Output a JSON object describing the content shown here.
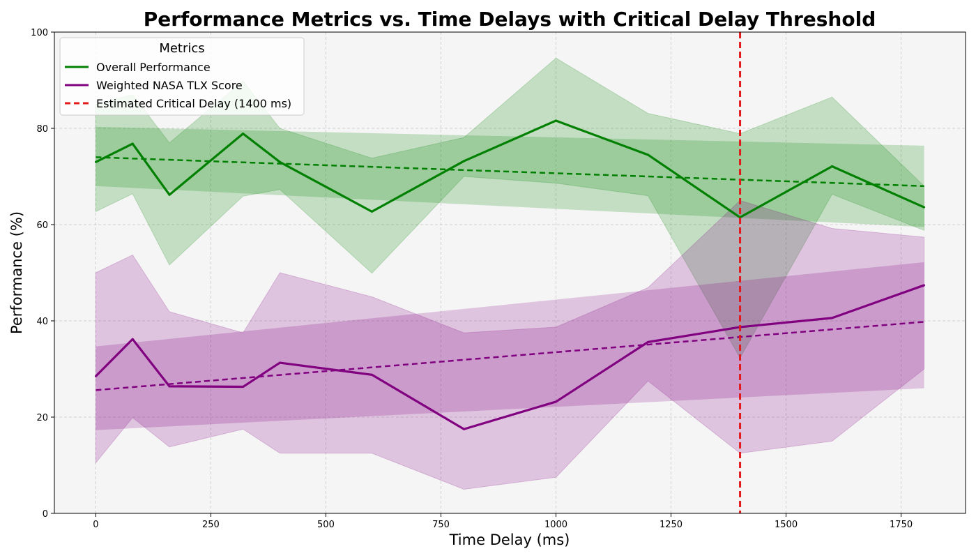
{
  "chart_data": {
    "type": "line",
    "title": "Performance Metrics vs. Time Delays with Critical Delay Threshold",
    "xlabel": "Time Delay (ms)",
    "ylabel": "Performance (%)",
    "xlim": [
      -90,
      1890
    ],
    "ylim": [
      0,
      100
    ],
    "xticks": [
      0,
      250,
      500,
      750,
      1000,
      1250,
      1500,
      1750
    ],
    "yticks": [
      0,
      20,
      40,
      60,
      80,
      100
    ],
    "grid": true,
    "legend": {
      "title": "Metrics",
      "placement": "top-left"
    },
    "x": [
      0,
      80,
      160,
      320,
      400,
      600,
      800,
      1000,
      1200,
      1400,
      1600,
      1800
    ],
    "series": [
      {
        "name": "Overall Performance",
        "color": "#008000",
        "values": [
          73.0,
          76.8,
          66.2,
          78.9,
          73.0,
          62.7,
          73.2,
          81.6,
          74.5,
          61.5,
          72.1,
          63.6
        ],
        "range_low": [
          62.7,
          66.4,
          51.6,
          65.9,
          67.3,
          49.9,
          70.0,
          68.6,
          66.0,
          32.3,
          66.3,
          58.8
        ],
        "range_high": [
          85.0,
          87.0,
          77.0,
          89.8,
          80.0,
          73.8,
          78.1,
          94.6,
          83.1,
          78.9,
          86.5,
          68.0
        ],
        "trend": [
          74.0,
          68.0
        ],
        "trend_band_low": [
          68.0,
          59.5
        ],
        "trend_band_high": [
          80.3,
          76.4
        ]
      },
      {
        "name": "Weighted NASA TLX Score",
        "color": "#800080",
        "values": [
          28.5,
          36.2,
          26.4,
          26.3,
          31.3,
          28.8,
          17.5,
          23.2,
          35.6,
          38.7,
          40.6,
          47.4
        ],
        "range_low": [
          10.5,
          19.9,
          13.8,
          17.5,
          12.5,
          12.5,
          5.0,
          7.5,
          27.5,
          12.5,
          15.0,
          30.0
        ],
        "range_high": [
          50.0,
          53.7,
          41.9,
          37.5,
          50.0,
          45.0,
          37.5,
          38.7,
          46.9,
          65.0,
          59.2,
          57.4
        ],
        "trend": [
          25.6,
          39.8
        ],
        "trend_band_low": [
          17.3,
          26.0
        ],
        "trend_band_high": [
          34.7,
          52.2
        ]
      }
    ],
    "critical_delay": {
      "x": 1400,
      "label": "Estimated Critical Delay (1400 ms)",
      "color": "#e31a1c"
    }
  }
}
